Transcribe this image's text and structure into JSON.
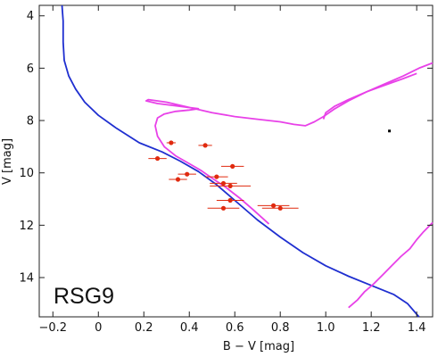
{
  "chart_data": {
    "type": "scatter",
    "title": "",
    "cluster_label": "RSG9",
    "xlabel": "B − V [mag]",
    "ylabel": "V [mag]",
    "xlim": [
      -0.26,
      1.47
    ],
    "ylim": [
      15.5,
      3.6
    ],
    "y_inverted": true,
    "grid": false,
    "x_ticks": [
      -0.2,
      0,
      0.2,
      0.4,
      0.6,
      0.8,
      1.0,
      1.2,
      1.4
    ],
    "x_tick_labels": [
      "−0.2",
      "0",
      "0.2",
      "0.4",
      "0.6",
      "0.8",
      "1.0",
      "1.2",
      "1.4"
    ],
    "y_ticks": [
      4,
      6,
      8,
      10,
      12,
      14
    ],
    "y_tick_labels": [
      "4",
      "6",
      "8",
      "10",
      "12",
      "14"
    ],
    "series": [
      {
        "kind": "line",
        "color": "#1f2fd0",
        "x": [
          -0.16,
          -0.155,
          -0.155,
          -0.15,
          -0.13,
          -0.1,
          -0.06,
          0.0,
          0.08,
          0.18,
          0.28,
          0.36,
          0.44,
          0.52,
          0.6,
          0.7,
          0.8,
          0.9,
          1.0,
          1.1,
          1.2,
          1.3,
          1.36,
          1.41
        ],
        "y": [
          3.6,
          4.2,
          5.0,
          5.7,
          6.3,
          6.8,
          7.3,
          7.8,
          8.3,
          8.85,
          9.2,
          9.55,
          9.95,
          10.45,
          11.05,
          11.8,
          12.45,
          13.05,
          13.55,
          13.95,
          14.3,
          14.65,
          15.0,
          15.5
        ]
      },
      {
        "kind": "line",
        "color": "#e841e8",
        "x": [
          1.1,
          1.14,
          1.17,
          1.21,
          1.25,
          1.29,
          1.33,
          1.37,
          1.4,
          1.43,
          1.47
        ],
        "y": [
          15.15,
          14.85,
          14.55,
          14.25,
          13.9,
          13.55,
          13.2,
          12.9,
          12.55,
          12.25,
          11.9
        ]
      },
      {
        "kind": "line",
        "color": "#e841e8",
        "x": [
          0.75,
          0.68,
          0.62,
          0.56,
          0.5,
          0.45,
          0.4,
          0.34,
          0.29,
          0.26,
          0.25,
          0.26,
          0.29,
          0.34,
          0.4,
          0.44,
          0.35,
          0.26,
          0.21,
          0.22,
          0.3,
          0.4,
          0.5,
          0.6,
          0.7,
          0.8,
          0.86,
          0.91,
          0.95,
          0.99,
          1.04,
          1.1,
          1.18,
          1.26,
          1.34,
          1.41,
          1.47
        ],
        "y": [
          11.95,
          11.4,
          10.95,
          10.55,
          10.2,
          9.9,
          9.65,
          9.35,
          9.0,
          8.6,
          8.2,
          7.9,
          7.75,
          7.65,
          7.6,
          7.55,
          7.45,
          7.35,
          7.25,
          7.2,
          7.3,
          7.5,
          7.7,
          7.85,
          7.95,
          8.05,
          8.15,
          8.2,
          8.05,
          7.85,
          7.55,
          7.25,
          6.9,
          6.6,
          6.3,
          6.0,
          5.8
        ]
      },
      {
        "kind": "line",
        "color": "#e841e8",
        "x": [
          0.99,
          1.0,
          1.04,
          1.1,
          1.18,
          1.26,
          1.34,
          1.4
        ],
        "y": [
          7.95,
          7.7,
          7.45,
          7.2,
          6.9,
          6.65,
          6.4,
          6.2
        ]
      }
    ],
    "points": {
      "color": "#e02a0f",
      "x": [
        0.32,
        0.47,
        0.59,
        0.26,
        0.39,
        0.52,
        0.35,
        0.55,
        0.58,
        0.58,
        0.77,
        0.8,
        0.55
      ],
      "y": [
        8.85,
        8.95,
        9.75,
        9.45,
        10.05,
        10.15,
        10.25,
        10.4,
        10.5,
        11.05,
        11.25,
        11.35,
        11.35
      ],
      "xerr": [
        0.02,
        0.03,
        0.05,
        0.04,
        0.04,
        0.05,
        0.04,
        0.06,
        0.09,
        0.06,
        0.07,
        0.08,
        0.07
      ]
    },
    "marker": {
      "x": 1.28,
      "y": 8.4,
      "color": "#000000"
    }
  }
}
